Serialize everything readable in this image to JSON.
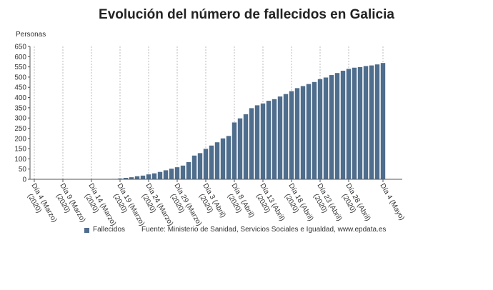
{
  "chart_data": {
    "type": "bar",
    "title": "Evolución del número de fallecidos en Galicia",
    "y_label": "Personas",
    "source": "Fuente: Ministerio de Sanidad, Servicios Sociales e Igualdad, www.epdata.es",
    "categories": [
      "Día 4 (Marzo)\n(2020)",
      null,
      null,
      null,
      null,
      "Día 9 (Marzo)\n(2020)",
      null,
      null,
      null,
      null,
      "Día 14 (Marzo)\n(2020)",
      null,
      null,
      null,
      null,
      "Día 19 (Marzo)\n(2020)",
      null,
      null,
      null,
      null,
      "Día 24 (Marzo)\n(2020)",
      null,
      null,
      null,
      null,
      "Día 29 (Marzo)\n(2020)",
      null,
      null,
      null,
      null,
      "Día 3 (Abril)\n(2020)",
      null,
      null,
      null,
      null,
      "Día 8 (Abril)\n(2020)",
      null,
      null,
      null,
      null,
      "Día 13 (Abril)\n(2020)",
      null,
      null,
      null,
      null,
      "Día 18 (Abril)\n(2020)",
      null,
      null,
      null,
      null,
      "Día 23 (Abril)\n(2020)",
      null,
      null,
      null,
      null,
      "Día 28 (Abril)\n(2020)",
      null,
      null,
      null,
      null,
      null,
      "Día 4 (Mayo)"
    ],
    "series": [
      {
        "name": "Fallecidos",
        "color": "#4f6d8c",
        "values": [
          0,
          0,
          0,
          0,
          0,
          0,
          0,
          0,
          0,
          0,
          0,
          0,
          0,
          1,
          2,
          4,
          7,
          10,
          15,
          18,
          24,
          29,
          36,
          44,
          52,
          59,
          67,
          84,
          116,
          128,
          149,
          165,
          181,
          200,
          212,
          278,
          298,
          318,
          348,
          362,
          371,
          384,
          392,
          405,
          417,
          431,
          446,
          456,
          466,
          476,
          490,
          498,
          510,
          520,
          531,
          540,
          546,
          549,
          554,
          557,
          562,
          569
        ]
      }
    ],
    "ylim": [
      0,
      650
    ],
    "yticks": [
      0,
      50,
      100,
      150,
      200,
      250,
      300,
      350,
      400,
      450,
      500,
      550,
      600,
      650
    ],
    "grid": true
  }
}
